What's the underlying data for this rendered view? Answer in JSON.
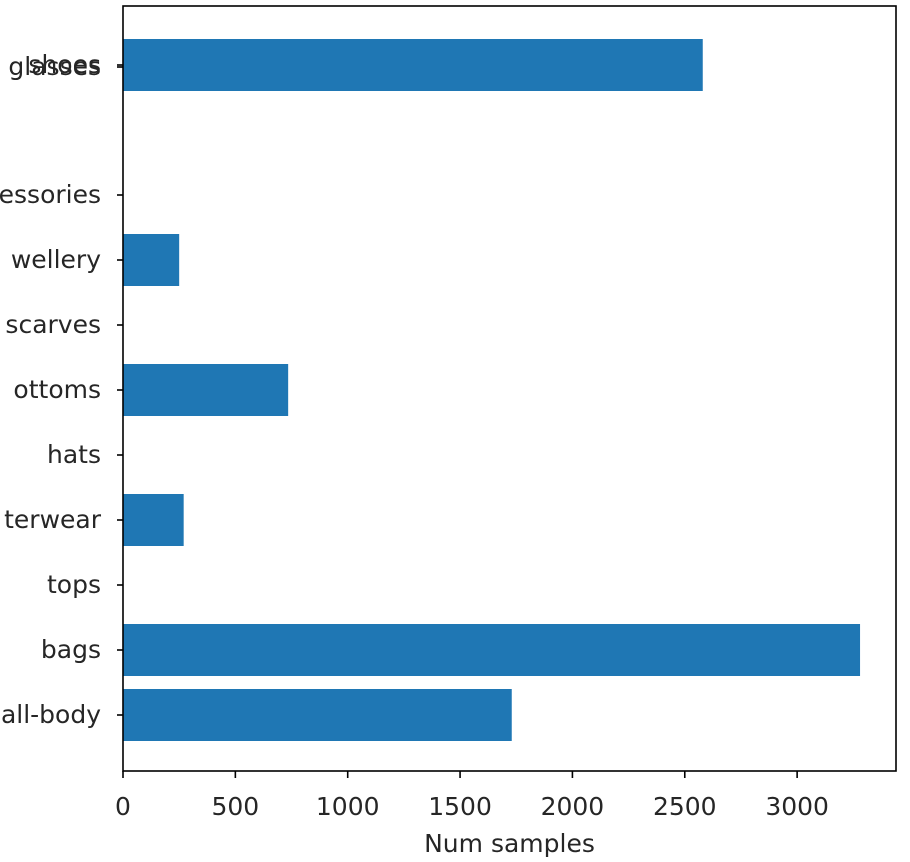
{
  "chart_data": {
    "type": "bar",
    "orientation": "horizontal",
    "categories": [
      "all-body",
      "bags",
      "tops",
      "outerwear",
      "hats",
      "bottoms",
      "scarves",
      "jewellery",
      "accessories",
      "eyeglasses",
      "shoes",
      "sunglasses"
    ],
    "category_labels_visible": [
      "all-body",
      "bags",
      "tops",
      "terwear",
      "hats",
      "ottoms",
      "scarves",
      "wellery",
      "essories",
      "glasses",
      "shoes",
      "glasses"
    ],
    "values": [
      1730,
      3280,
      0,
      270,
      0,
      735,
      0,
      250,
      0,
      0,
      2580,
      0
    ],
    "xlabel": "Num samples",
    "ylabel": "",
    "xlim": [
      0,
      3440
    ],
    "xticks": [
      0,
      500,
      1000,
      1500,
      2000,
      2500,
      3000
    ],
    "bar_color": "#1f77b4",
    "grid": false,
    "legend": "none"
  },
  "labels_vis": [
    {
      "value": "glasses",
      "index": 11
    },
    {
      "value": "shoes",
      "index": 10
    },
    {
      "value": "essories",
      "index": 8
    },
    {
      "value": "wellery",
      "index": 7
    },
    {
      "value": "scarves",
      "index": 6
    },
    {
      "value": "ottoms",
      "index": 5
    },
    {
      "value": "hats",
      "index": 4
    },
    {
      "value": "terwear",
      "index": 3
    },
    {
      "value": "tops",
      "index": 2
    },
    {
      "value": "bags",
      "index": 1
    },
    {
      "value": "all-body",
      "index": 0
    }
  ]
}
